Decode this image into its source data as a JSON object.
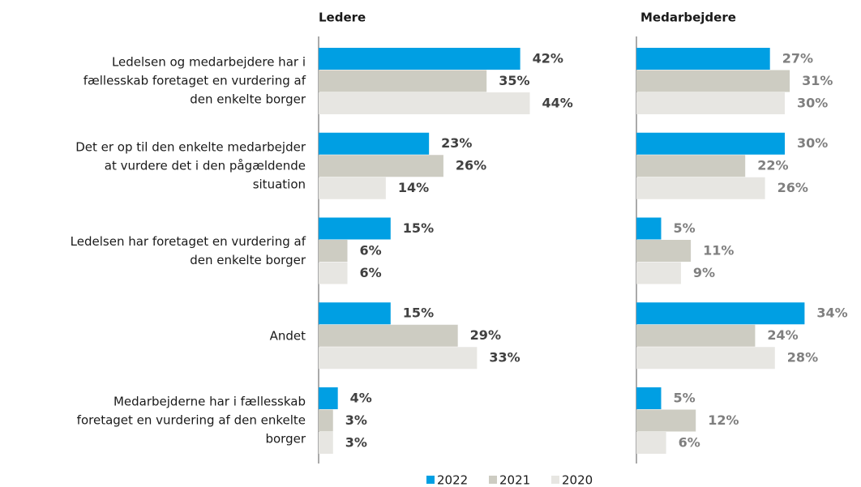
{
  "chart_data": [
    {
      "type": "bar",
      "title": "Ledere",
      "categories": [
        "Ledelsen og medarbejdere har i\nfællesskab foretaget en vurdering af\nden enkelte borger",
        "Det er op til den enkelte medarbejder\nat vurdere det i den pågældende\nsituation",
        "Ledelsen har foretaget en vurdering af\nden enkelte borger",
        "Andet",
        "Medarbejderne har i fællesskab\nforetaget en vurdering af den enkelte\nborger"
      ],
      "xlim": [
        0,
        50
      ],
      "series": [
        {
          "name": "2022",
          "color": "#009fe3",
          "values": [
            42,
            23,
            15,
            15,
            4
          ],
          "value_labels": [
            "42%",
            "23%",
            "15%",
            "15%",
            "4%"
          ]
        },
        {
          "name": "2021",
          "color": "#cdccc2",
          "values": [
            35,
            26,
            6,
            29,
            3
          ],
          "value_labels": [
            "35%",
            "26%",
            "6%",
            "29%",
            "3%"
          ]
        },
        {
          "name": "2020",
          "color": "#e7e6e2",
          "values": [
            44,
            14,
            6,
            33,
            3
          ],
          "value_labels": [
            "44%",
            "14%",
            "6%",
            "33%",
            "3%"
          ]
        }
      ]
    },
    {
      "type": "bar",
      "title": "Medarbejdere",
      "xlim": [
        0,
        50
      ],
      "series": [
        {
          "color": "#009fe3",
          "values": [
            27,
            30,
            5,
            34,
            5
          ],
          "value_labels": [
            "27%",
            "30%",
            "5%",
            "34%",
            "5%"
          ]
        },
        {
          "color": "#cdccc2",
          "values": [
            31,
            22,
            11,
            24,
            12
          ],
          "value_labels": [
            "31%",
            "22%",
            "11%",
            "24%",
            "12%"
          ]
        },
        {
          "color": "#e7e6e2",
          "values": [
            30,
            26,
            9,
            28,
            6
          ],
          "value_labels": [
            "30%",
            "26%",
            "9%",
            "28%",
            "6%"
          ]
        }
      ]
    }
  ]
}
